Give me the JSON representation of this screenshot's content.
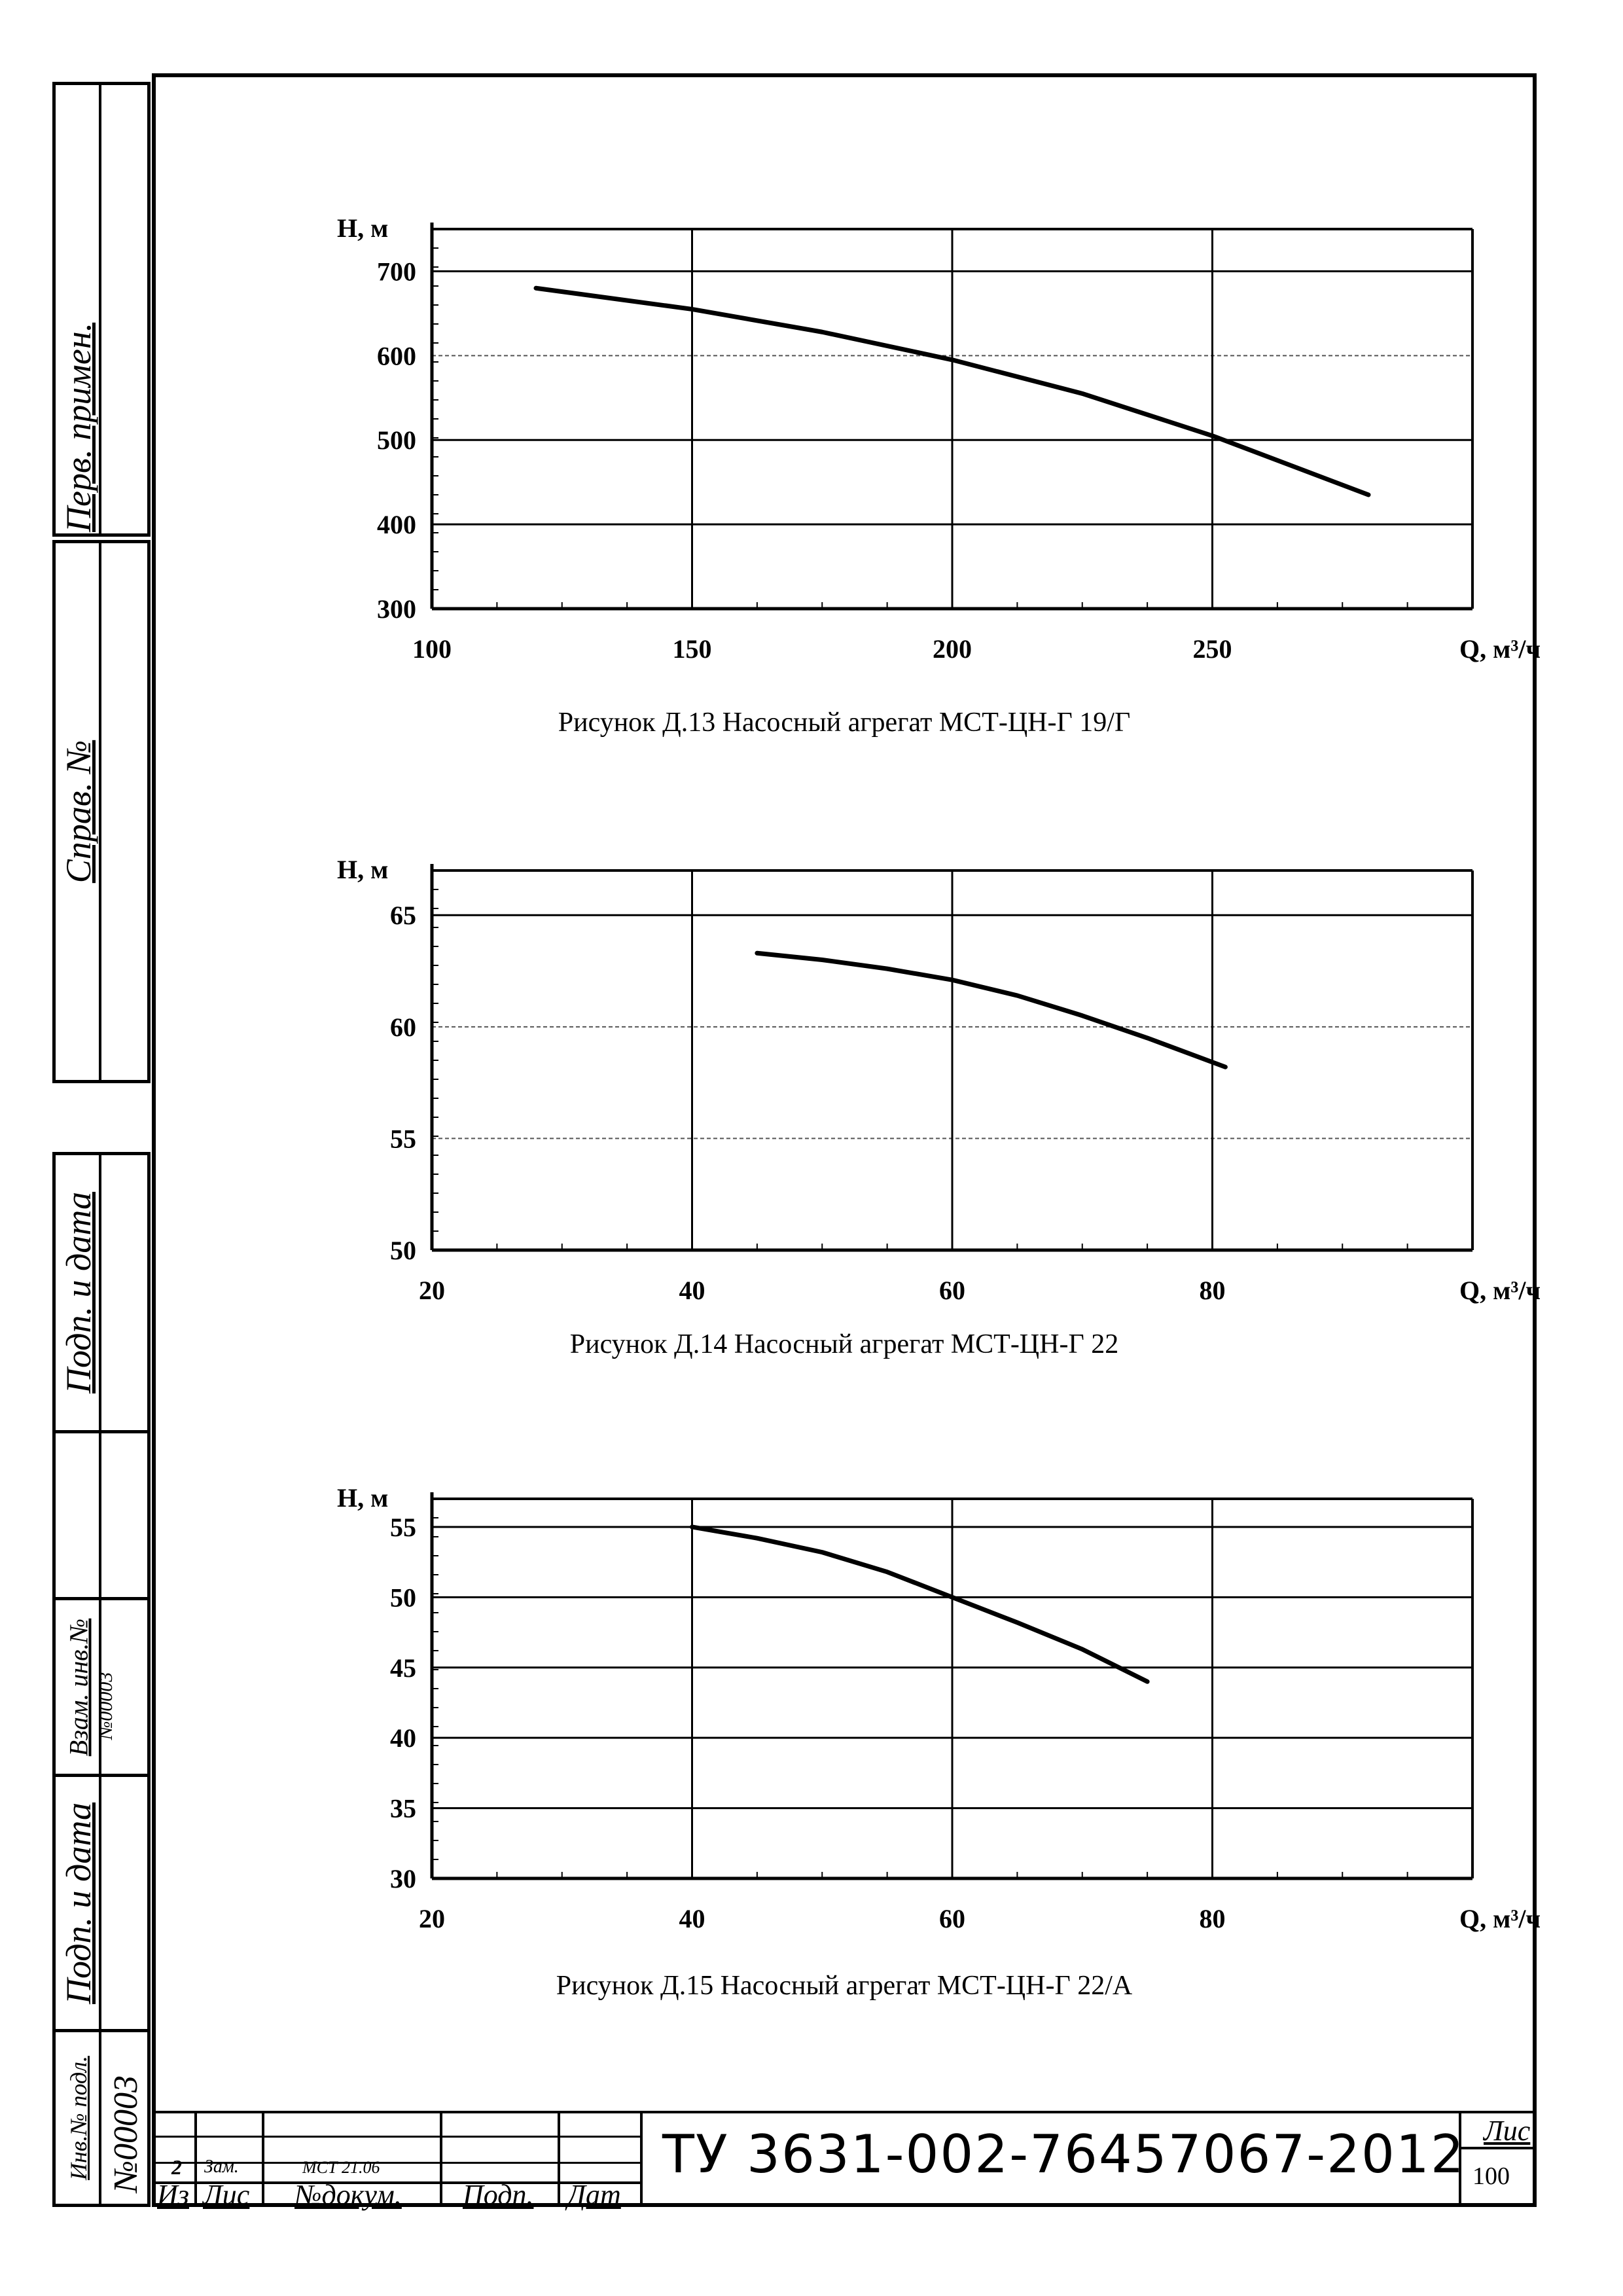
{
  "side_labels": {
    "perv_primen": "Перв. примен.",
    "sprav_no": "Справ. №",
    "podp_data_1": "Подп. и дата",
    "vzam_inv": "Взам. инв.№",
    "vzam_inv_value": "№00003",
    "podp_data_2": "Подп. и дата",
    "inv_podl": "Инв.№ подл.",
    "inv_podl_value": "№00003"
  },
  "title_block": {
    "row1": {
      "izm": "2",
      "list": "Зам.",
      "doc": "МСТ 21.06"
    },
    "headers": {
      "izm": "Из",
      "list": "Лис",
      "doc": "№докум.",
      "podp": "Подп.",
      "data": "Дат"
    },
    "doc_number": "ТУ 3631-002-76457067-2012",
    "sheet_label": "Лис",
    "sheet_number": "100"
  },
  "chart_data": [
    {
      "type": "line",
      "title": "",
      "caption": "Рисунок Д.13 Насосный агрегат МСТ-ЦН-Г 19/Г",
      "ylabel": "Н, м",
      "xlabel": "Q, м³/ч",
      "xlim": [
        100,
        300
      ],
      "ylim": [
        300,
        750
      ],
      "xticks": [
        "100",
        "150",
        "200",
        "250"
      ],
      "yticks": [
        "300",
        "400",
        "500",
        "600",
        "700"
      ],
      "ytick_values": [
        300,
        400,
        500,
        600,
        700
      ],
      "xtick_values": [
        100,
        150,
        200,
        250
      ],
      "grid": true,
      "series": [
        {
          "x": [
            120,
            150,
            175,
            200,
            225,
            250,
            265,
            280
          ],
          "y": [
            680,
            655,
            628,
            595,
            555,
            505,
            470,
            435
          ]
        }
      ]
    },
    {
      "type": "line",
      "title": "",
      "caption": "Рисунок Д.14 Насосный агрегат МСТ-ЦН-Г 22",
      "ylabel": "Н, м",
      "xlabel": "Q, м³/ч",
      "xlim": [
        20,
        100
      ],
      "ylim": [
        50,
        67
      ],
      "xticks": [
        "20",
        "40",
        "60",
        "80"
      ],
      "yticks": [
        "50",
        "55",
        "60",
        "65"
      ],
      "ytick_values": [
        50,
        55,
        60,
        65
      ],
      "xtick_values": [
        20,
        40,
        60,
        80
      ],
      "grid": true,
      "series": [
        {
          "x": [
            45,
            50,
            55,
            60,
            65,
            70,
            75,
            81
          ],
          "y": [
            63.3,
            63.0,
            62.6,
            62.1,
            61.4,
            60.5,
            59.5,
            58.2
          ]
        }
      ]
    },
    {
      "type": "line",
      "title": "",
      "caption": "Рисунок Д.15 Насосный агрегат МСТ-ЦН-Г 22/А",
      "ylabel": "Н, м",
      "xlabel": "Q, м³/ч",
      "xlim": [
        20,
        100
      ],
      "ylim": [
        30,
        57
      ],
      "xticks": [
        "20",
        "40",
        "60",
        "80"
      ],
      "yticks": [
        "30",
        "35",
        "40",
        "45",
        "50",
        "55"
      ],
      "ytick_values": [
        30,
        35,
        40,
        45,
        50,
        55
      ],
      "xtick_values": [
        20,
        40,
        60,
        80
      ],
      "grid": true,
      "series": [
        {
          "x": [
            40,
            45,
            50,
            55,
            60,
            65,
            70,
            75
          ],
          "y": [
            55,
            54.2,
            53.2,
            51.8,
            50.0,
            48.2,
            46.3,
            44.0
          ]
        }
      ]
    }
  ]
}
